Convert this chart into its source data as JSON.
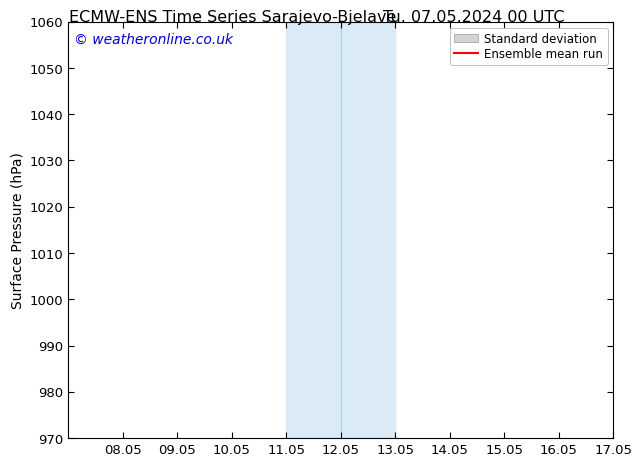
{
  "title_left": "ECMW-ENS Time Series Sarajevo-Bjelave",
  "title_right": "Tu. 07.05.2024 00 UTC",
  "ylabel": "Surface Pressure (hPa)",
  "watermark": "© weatheronline.co.uk",
  "watermark_color": "#0000cc",
  "ylim": [
    970,
    1060
  ],
  "yticks": [
    970,
    980,
    990,
    1000,
    1010,
    1020,
    1030,
    1040,
    1050,
    1060
  ],
  "xtick_labels": [
    "08.05",
    "09.05",
    "10.05",
    "11.05",
    "12.05",
    "13.05",
    "14.05",
    "15.05",
    "16.05",
    "17.05"
  ],
  "xtick_positions": [
    1,
    2,
    3,
    4,
    5,
    6,
    7,
    8,
    9,
    10
  ],
  "x_min": 0,
  "x_max": 10,
  "shaded_region_start": 4,
  "shaded_region_end": 6,
  "shaded_region_color": "#daeaf7",
  "shaded_region_line_color": "#b0cfe0",
  "shaded_region_line_x": 5,
  "background_color": "#ffffff",
  "tick_color": "#000000",
  "legend_std_color": "#d3d3d3",
  "legend_std_edge_color": "#999999",
  "legend_mean_color": "#ff0000",
  "title_fontsize": 11.5,
  "axis_label_fontsize": 10,
  "tick_fontsize": 9.5,
  "watermark_fontsize": 10,
  "legend_fontsize": 8.5
}
